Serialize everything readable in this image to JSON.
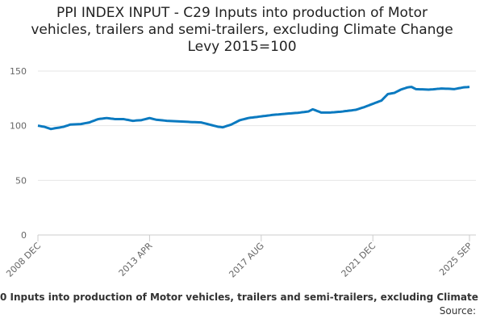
{
  "chart_data": {
    "type": "line",
    "title": "PPI INDEX INPUT - C29 Inputs into production of Motor vehicles, trailers and semi-trailers, excluding Climate Change Levy 2015=100",
    "caption": "0 Inputs into production of Motor vehicles, trailers and semi-trailers, excluding Climate",
    "source": "Source:",
    "color": "#0b7ac0",
    "grid": true,
    "ylim": [
      0,
      150
    ],
    "yticks": [
      0,
      50,
      100,
      150
    ],
    "categories": [
      "2008 DEC",
      null,
      null,
      null,
      null,
      null,
      null,
      null,
      null,
      null,
      null,
      null,
      null,
      null,
      null,
      null,
      null,
      null,
      null,
      null,
      null,
      null,
      null,
      null,
      null,
      null,
      null,
      null,
      null,
      null,
      null,
      null,
      null,
      null,
      null,
      null,
      null,
      null,
      null,
      null,
      null,
      null,
      null,
      null,
      null,
      null,
      null,
      null,
      null,
      null,
      null,
      null,
      "2013 APR",
      null,
      null,
      null,
      null,
      null,
      null,
      null,
      null,
      null,
      null,
      null,
      null,
      null,
      null,
      null,
      null,
      null,
      null,
      null,
      null,
      null,
      null,
      null,
      null,
      null,
      null,
      null,
      null,
      null,
      null,
      null,
      null,
      null,
      null,
      null,
      null,
      null,
      null,
      null,
      null,
      null,
      null,
      null,
      null,
      null,
      null,
      null,
      null,
      null,
      null,
      null,
      "2017 AUG",
      null,
      null,
      null,
      null,
      null,
      null,
      null,
      null,
      null,
      null,
      null,
      null,
      null,
      null,
      null,
      null,
      null,
      null,
      null,
      null,
      null,
      null,
      null,
      null,
      null,
      null,
      null,
      null,
      null,
      null,
      null,
      null,
      null,
      null,
      null,
      null,
      null,
      null,
      null,
      null,
      null,
      null,
      null,
      null,
      null,
      null,
      null,
      null,
      null,
      null,
      null,
      "2021 DEC",
      null,
      null,
      null,
      null,
      null,
      null,
      null,
      null,
      null,
      null,
      null,
      null,
      null,
      null,
      null,
      null,
      null,
      null,
      null,
      null,
      null,
      null,
      null,
      null,
      null,
      null,
      null,
      null,
      null,
      null,
      null,
      null,
      null,
      null,
      null,
      null,
      null,
      null,
      null,
      null,
      null,
      null,
      null,
      null,
      "2025 SEP"
    ],
    "values": [
      100,
      99.7,
      99.3,
      99,
      98.3,
      97.7,
      97,
      97.3,
      97.7,
      98,
      98.3,
      98.7,
      99,
      99.7,
      100.3,
      101,
      101.1,
      101.2,
      101.3,
      101.4,
      101.5,
      101.9,
      102.3,
      102.6,
      103,
      103.8,
      104.5,
      105.3,
      106,
      106.3,
      106.5,
      106.8,
      107,
      106.8,
      106.5,
      106.3,
      106,
      106,
      106,
      106,
      106,
      105.6,
      105.3,
      104.9,
      104.5,
      104.6,
      104.8,
      104.9,
      105,
      105.5,
      106,
      106.5,
      107,
      106.5,
      106,
      105.5,
      105.3,
      105.1,
      104.9,
      104.7,
      104.5,
      104.4,
      104.3,
      104.2,
      104.1,
      104,
      103.9,
      103.8,
      103.7,
      103.6,
      103.5,
      103.4,
      103.3,
      103.3,
      103.2,
      103.1,
      103,
      102.5,
      102,
      101.5,
      101,
      100.5,
      100,
      99.5,
      99,
      98.8,
      98.5,
      99.1,
      99.8,
      100.4,
      101,
      102,
      103,
      104,
      105,
      105.5,
      106,
      106.5,
      107,
      107.3,
      107.5,
      107.8,
      108,
      108.3,
      108.5,
      108.8,
      109,
      109.3,
      109.5,
      109.8,
      110,
      110.2,
      110.3,
      110.5,
      110.7,
      110.8,
      111,
      111.2,
      111.3,
      111.5,
      111.7,
      111.8,
      112,
      112.3,
      112.5,
      112.8,
      113,
      114,
      115,
      114.3,
      113.5,
      112.8,
      112,
      112,
      112,
      112,
      112,
      112.2,
      112.3,
      112.5,
      112.7,
      112.8,
      113,
      113.3,
      113.5,
      113.8,
      114,
      114.3,
      114.5,
      115.1,
      115.8,
      116.4,
      117,
      117.8,
      118.5,
      119.3,
      120,
      120.8,
      121.5,
      122.3,
      123,
      125,
      127,
      129,
      129.3,
      129.7,
      130,
      131,
      132,
      133,
      133.7,
      134.3,
      135,
      135.3,
      135.5,
      134.5,
      133.5,
      133.4,
      133.3,
      133.3,
      133.2,
      133.1,
      133,
      133.2,
      133.3,
      133.5,
      133.7,
      133.8,
      134,
      133.9,
      133.8,
      133.8,
      133.7,
      133.6,
      133.5,
      133.9,
      134.3,
      134.6,
      135,
      135.2,
      135.3,
      135.5
    ]
  }
}
